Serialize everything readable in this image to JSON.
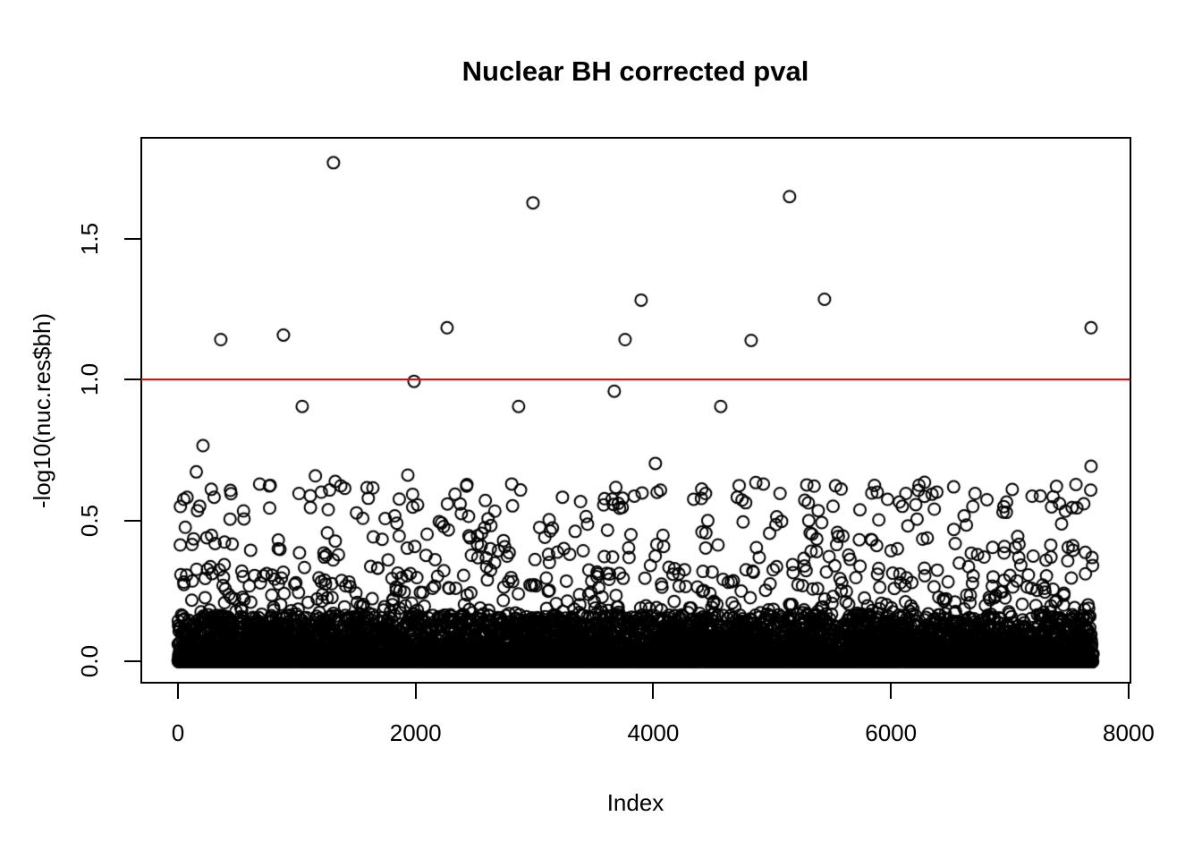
{
  "figure": {
    "background_color": "#ffffff",
    "axis_color": "#000000"
  },
  "chart_data": {
    "type": "scatter",
    "title": "Nuclear BH corrected pval",
    "xlabel": "Index",
    "ylabel": "-log10(nuc.res$bh)",
    "grid": false,
    "legend": null,
    "x_ticks": [
      {
        "label": "0",
        "value": 0
      },
      {
        "label": "2000",
        "value": 2000
      },
      {
        "label": "4000",
        "value": 4000
      },
      {
        "label": "6000",
        "value": 6000
      },
      {
        "label": "8000",
        "value": 8000
      }
    ],
    "y_ticks": [
      {
        "label": "0.0",
        "value": 0.0
      },
      {
        "label": "0.5",
        "value": 0.5
      },
      {
        "label": "1.0",
        "value": 1.0
      },
      {
        "label": "1.5",
        "value": 1.5
      }
    ],
    "xlim_usr": [
      -308,
      8008
    ],
    "ylim_usr": [
      -0.0714,
      1.8574
    ],
    "n_points": 7700,
    "marker": {
      "shape": "open-circle",
      "color": "#000000",
      "radius_px": 6.5,
      "stroke_px": 2
    },
    "threshold_line": {
      "y": 1.0,
      "color": "#ff0000"
    },
    "outliers": [
      [
        1309,
        1.769
      ],
      [
        2988,
        1.627
      ],
      [
        5147,
        1.649
      ],
      [
        3898,
        1.282
      ],
      [
        5441,
        1.285
      ],
      [
        361,
        1.142
      ],
      [
        888,
        1.158
      ],
      [
        2265,
        1.184
      ],
      [
        3763,
        1.142
      ],
      [
        4824,
        1.139
      ],
      [
        7684,
        1.184
      ],
      [
        1987,
        0.994
      ],
      [
        1046,
        0.905
      ],
      [
        2867,
        0.905
      ],
      [
        4568,
        0.905
      ],
      [
        3672,
        0.959
      ],
      [
        211,
        0.766
      ],
      [
        4018,
        0.703
      ],
      [
        7684,
        0.693
      ],
      [
        6283,
        0.636
      ],
      [
        1324,
        0.639
      ]
    ],
    "background_distribution": {
      "seed": 1309,
      "mixture": [
        {
          "weight": 0.915,
          "min": 0.0,
          "max": 0.165,
          "power": 3.0
        },
        {
          "weight": 0.063,
          "min": 0.165,
          "max": 0.45,
          "power": 1.6
        },
        {
          "weight": 0.008,
          "min": 0.45,
          "max": 0.535,
          "power": 1.0
        },
        {
          "weight": 0.0135,
          "min": 0.535,
          "max": 0.63,
          "power": 1.0
        },
        {
          "weight": 0.0005,
          "min": 0.63,
          "max": 0.7,
          "power": 1.0
        }
      ]
    }
  }
}
